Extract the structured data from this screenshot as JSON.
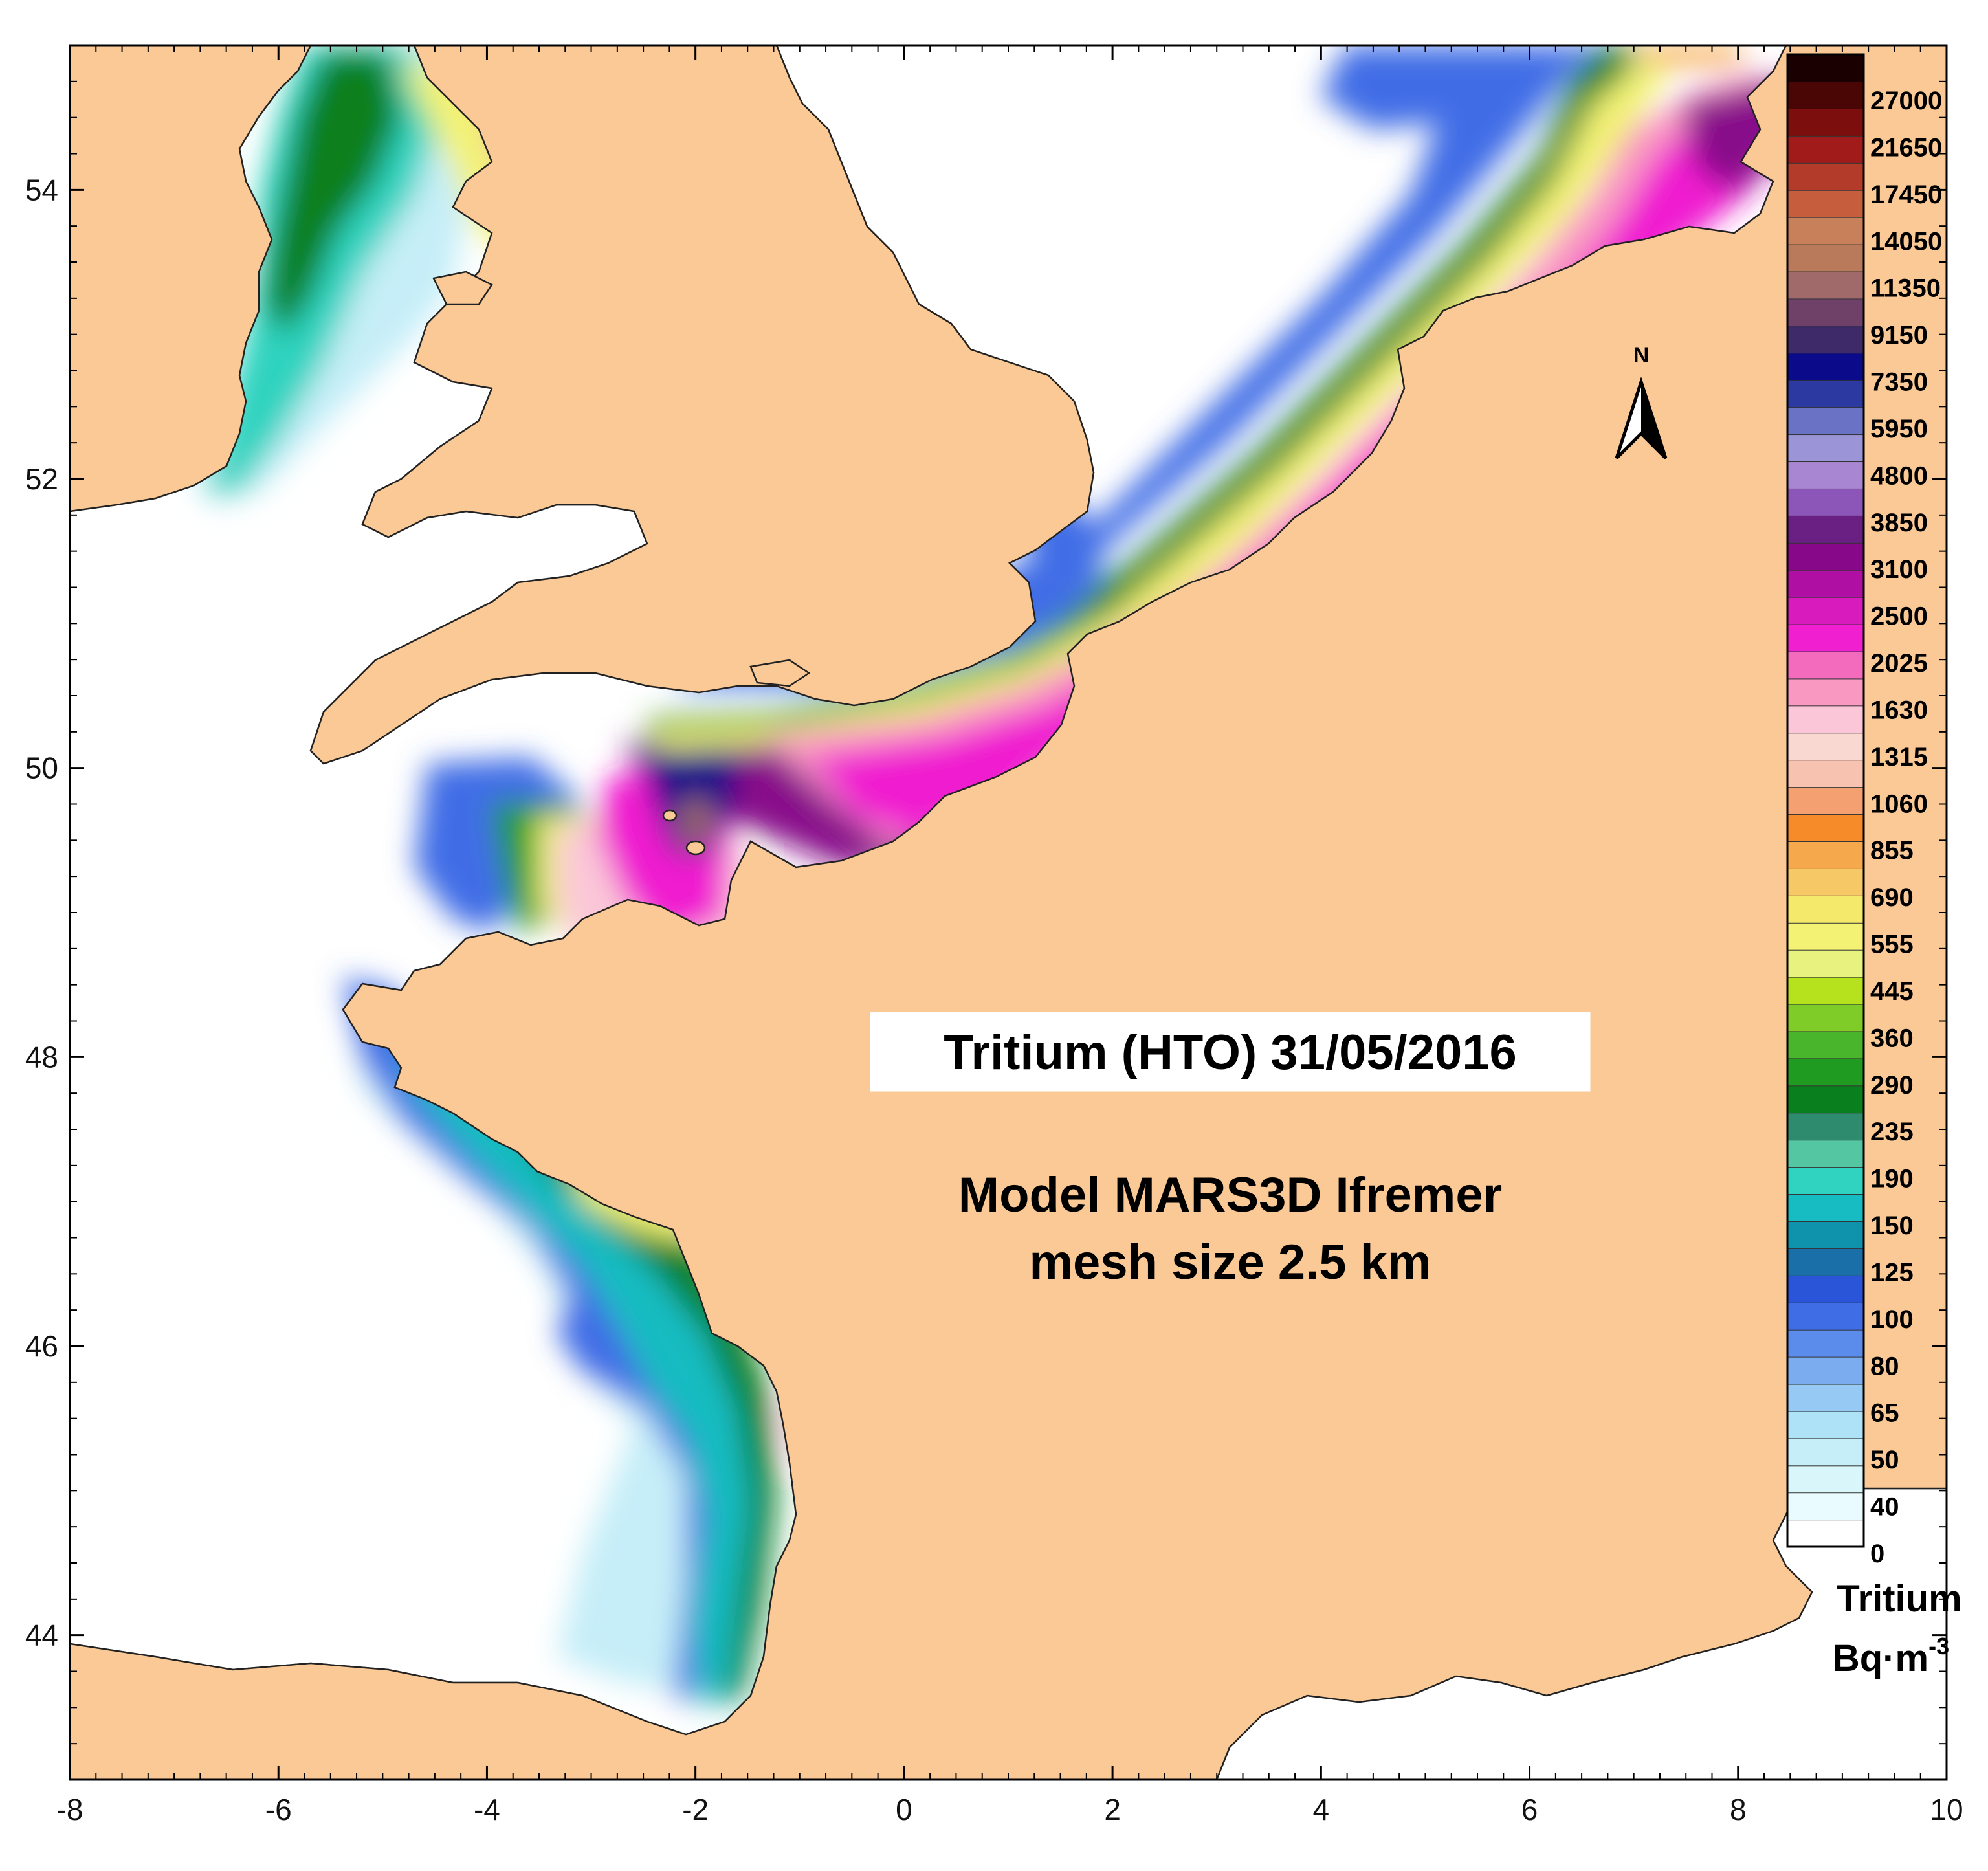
{
  "map": {
    "title": "Tritium (HTO) 31/05/2016",
    "model_line1": "Model MARS3D Ifremer",
    "model_line2": "mesh size 2.5 km",
    "north_label": "N",
    "x_axis": {
      "min": -8,
      "max": 10,
      "ticks": [
        "-8",
        "-6",
        "-4",
        "-2",
        "0",
        "2",
        "4",
        "6",
        "8",
        "10"
      ]
    },
    "y_axis": {
      "min": 43,
      "max": 55,
      "ticks": [
        "44",
        "46",
        "48",
        "50",
        "52",
        "54"
      ]
    },
    "colors": {
      "land": "#fbc996",
      "sea": "#ffffff",
      "coast": "#222222"
    }
  },
  "colorbar": {
    "title": "Tritium",
    "unit_main": "Bq·m",
    "unit_sup": "-3",
    "labels": [
      "27000",
      "21650",
      "17450",
      "14050",
      "11350",
      "9150",
      "7350",
      "5950",
      "4800",
      "3850",
      "3100",
      "2500",
      "2025",
      "1630",
      "1315",
      "1060",
      "855",
      "690",
      "555",
      "445",
      "360",
      "290",
      "235",
      "190",
      "150",
      "125",
      "100",
      "80",
      "65",
      "50",
      "40",
      "0"
    ],
    "colors": [
      "#ffffff",
      "#e9fbfe",
      "#d9f6fb",
      "#c6eef8",
      "#aee2f7",
      "#96c9f3",
      "#7bacef",
      "#5b8cec",
      "#3f6de6",
      "#2b55d8",
      "#1b6fa8",
      "#0f93ad",
      "#16bcc1",
      "#2fd3bf",
      "#54c7a2",
      "#2e8b6e",
      "#0a7f1e",
      "#1f9b22",
      "#48b52c",
      "#7fcc28",
      "#b5e21c",
      "#e7f27f",
      "#f3f274",
      "#f4e96a",
      "#f6c966",
      "#f6a94c",
      "#f68b2a",
      "#f5a070",
      "#f7c2b0",
      "#fad8d2",
      "#fbc7d8",
      "#f998c1",
      "#f36bbd",
      "#f01fd0",
      "#d81bbd",
      "#b00fa4",
      "#88088a",
      "#6a1f83",
      "#8c55b8",
      "#a986d1",
      "#9b95d8",
      "#6a72c6",
      "#2c39a0",
      "#0a0a8a",
      "#3e2a68",
      "#6f4168",
      "#a06a6a",
      "#b97a5c",
      "#c8805a",
      "#c65e3e",
      "#b23b2a",
      "#a21b1b",
      "#7c0e0e",
      "#4a0505",
      "#1a0000"
    ]
  }
}
